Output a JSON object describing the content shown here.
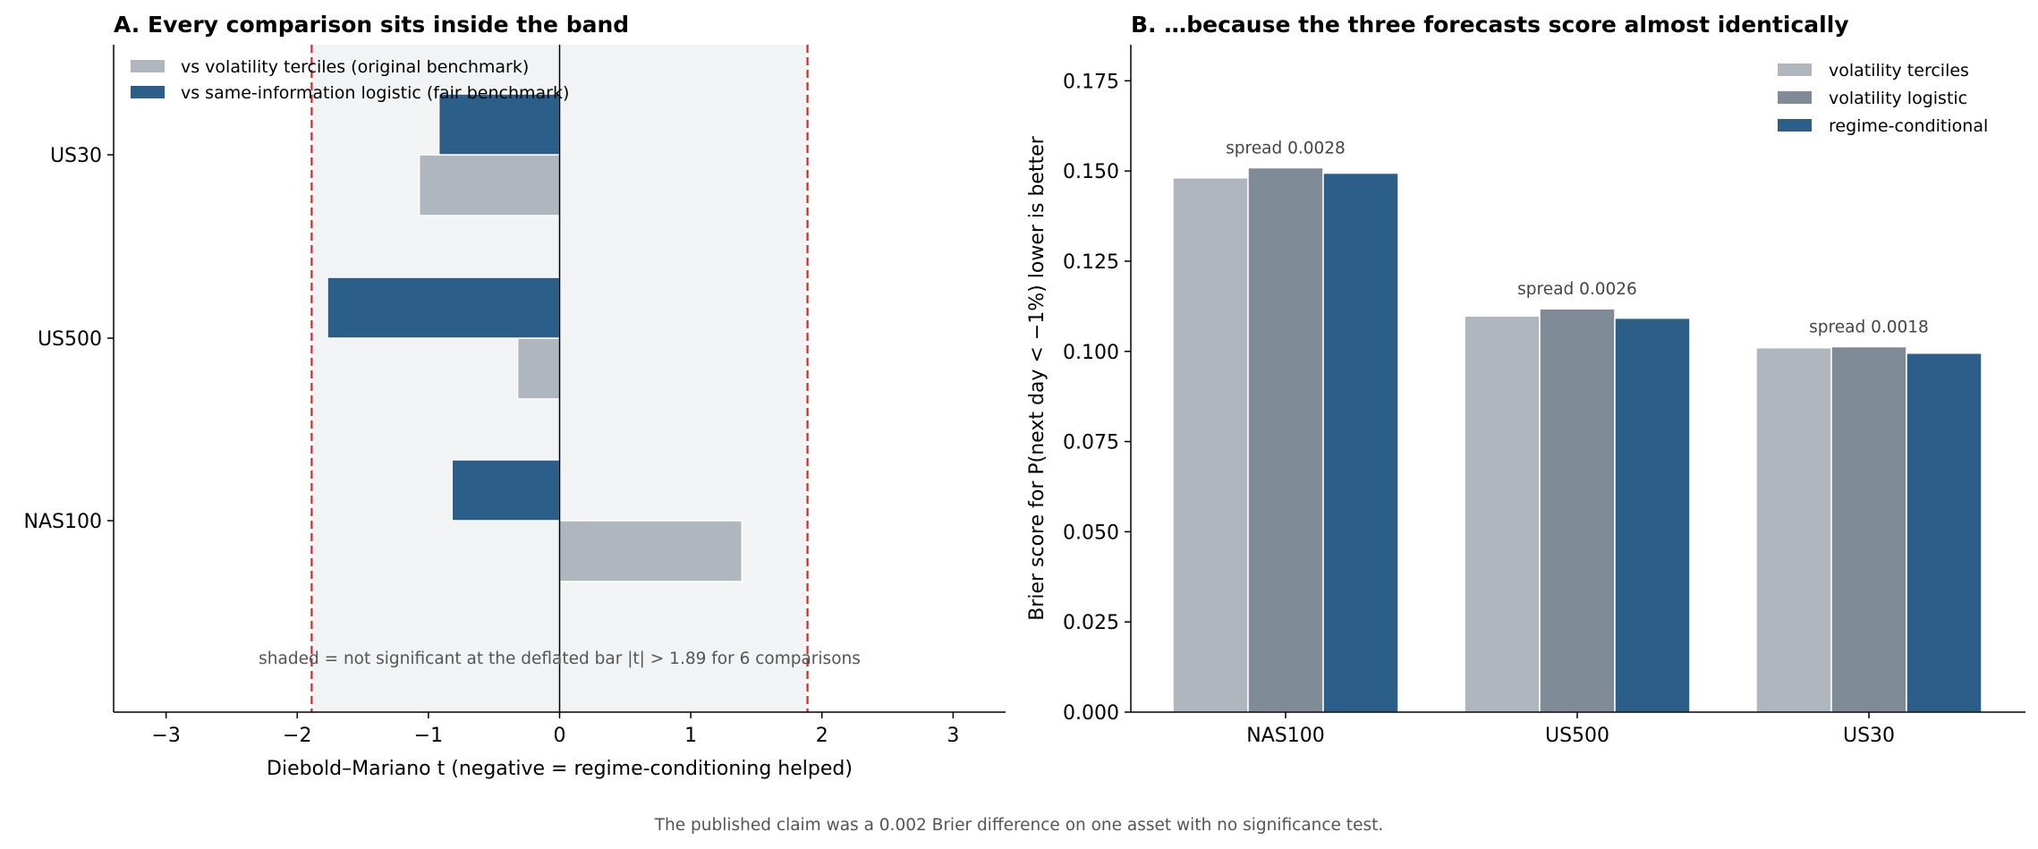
{
  "footer_note": "The published claim was a 0.002 Brier difference on one asset with no significance test.",
  "colors": {
    "terciles": "#b0b6bd",
    "logistic_vol": "#7f8c98",
    "regime": "#2b5f8a",
    "threshold": "#d62728",
    "band": "#f2f3f5"
  },
  "chart_data": [
    {
      "type": "bar",
      "orientation": "horizontal",
      "title": "A. Every comparison sits inside the band",
      "xlabel": "Diebold–Mariano t  (negative = regime-conditioning helped)",
      "ylabel": "",
      "xlim": [
        -3.4,
        3.4
      ],
      "xticks": [
        -3,
        -2,
        -1,
        0,
        1,
        2,
        3
      ],
      "xtick_labels": [
        "−3",
        "−2",
        "−1",
        "0",
        "1",
        "2",
        "3"
      ],
      "categories": [
        "NAS100",
        "US500",
        "US30"
      ],
      "series": [
        {
          "name": "vs volatility terciles (original benchmark)",
          "color_key": "terciles",
          "values": [
            1.39,
            -0.32,
            -1.07
          ]
        },
        {
          "name": "vs same-information logistic (fair benchmark)",
          "color_key": "regime",
          "values": [
            -0.82,
            -1.77,
            -0.92
          ]
        }
      ],
      "threshold": 1.89,
      "shaded_band": [
        -1.89,
        1.89
      ],
      "annotation": "shaded = not significant at the deflated bar |t| > 1.89 for 6 comparisons",
      "legend_position": "top-left",
      "grid": false
    },
    {
      "type": "bar",
      "title": "B. …because the three forecasts score almost identically",
      "xlabel": "",
      "ylabel": "Brier score for P(next day < −1%)   lower is better",
      "ylim": [
        0,
        0.185
      ],
      "yticks": [
        0.0,
        0.025,
        0.05,
        0.075,
        0.1,
        0.125,
        0.15,
        0.175
      ],
      "ytick_labels": [
        "0.000",
        "0.025",
        "0.050",
        "0.075",
        "0.100",
        "0.125",
        "0.150",
        "0.175"
      ],
      "categories": [
        "NAS100",
        "US500",
        "US30"
      ],
      "series": [
        {
          "name": "volatility terciles",
          "color_key": "terciles",
          "values": [
            0.1481,
            0.1098,
            0.101
          ]
        },
        {
          "name": "volatility logistic",
          "color_key": "logistic_vol",
          "values": [
            0.1509,
            0.1118,
            0.1013
          ]
        },
        {
          "name": "regime-conditional",
          "color_key": "regime",
          "values": [
            0.1494,
            0.1092,
            0.0995
          ]
        }
      ],
      "annotations": [
        "spread 0.0028",
        "spread 0.0026",
        "spread 0.0018"
      ],
      "legend_position": "top-right",
      "grid": false
    }
  ]
}
